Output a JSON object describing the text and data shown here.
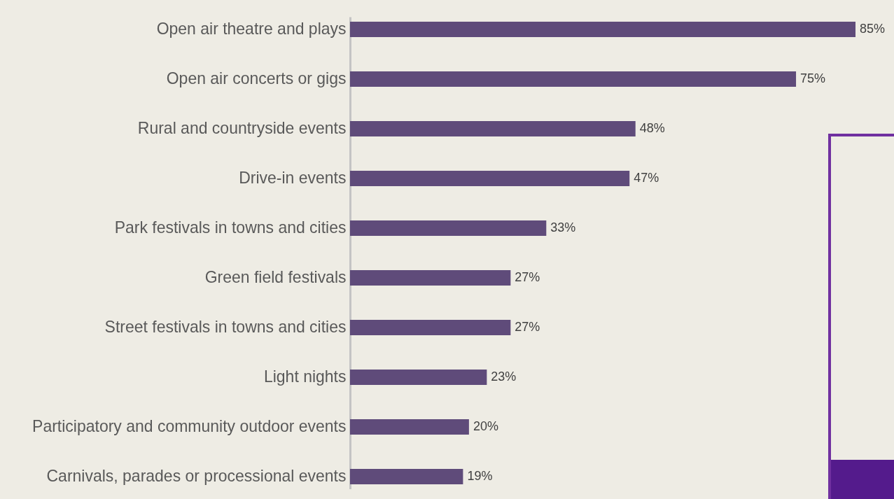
{
  "chart_data": {
    "type": "bar",
    "orientation": "horizontal",
    "categories": [
      "Open air theatre and plays",
      "Open air concerts or gigs",
      "Rural and countryside events",
      "Drive-in events",
      "Park festivals in towns and cities",
      "Green field festivals",
      "Street festivals in towns and cities",
      "Light nights",
      "Participatory and community outdoor events",
      "Carnivals, parades or processional events"
    ],
    "values": [
      85,
      75,
      48,
      47,
      33,
      27,
      27,
      23,
      20,
      19
    ],
    "value_labels": [
      "85%",
      "75%",
      "48%",
      "47%",
      "33%",
      "27%",
      "27%",
      "23%",
      "20%",
      "19%"
    ],
    "color": "#5f4b7a",
    "grid": false,
    "tick_labels": "y"
  }
}
